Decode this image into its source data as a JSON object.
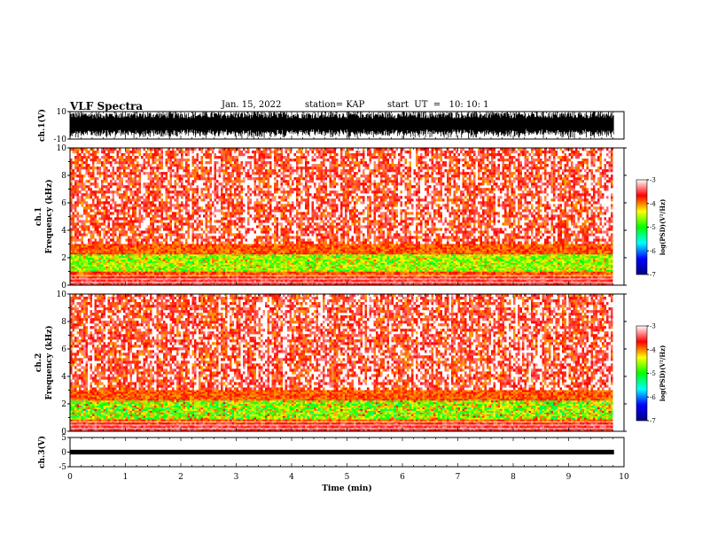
{
  "header": {
    "title": "VLF Spectra",
    "date": "Jan. 15, 2022",
    "station": "station= KAP",
    "start": "start  UT  =   10: 10: 1"
  },
  "chart_data": [
    {
      "type": "line",
      "name": "ch1-waveform",
      "ylabel": "ch.1(V)",
      "ylim": [
        -10,
        10
      ],
      "yticks": [
        "10",
        "-10"
      ],
      "xlim": [
        0,
        10
      ]
    },
    {
      "type": "heatmap",
      "name": "ch1-spectrogram",
      "ylabel": "ch.1\nFrequency (kHz)",
      "ylim": [
        0,
        10
      ],
      "yticks": [
        "0",
        "2",
        "4",
        "6",
        "8",
        "10"
      ],
      "xlim": [
        0,
        10
      ],
      "data_end_min": 9.82,
      "strong_band_khz": [
        1.0,
        3.0
      ],
      "colorbar": {
        "label": "log(PSD)(V²/Hz)",
        "range": [
          -7,
          -3
        ],
        "ticks": [
          "-3",
          "-4",
          "-5",
          "-6",
          "-7"
        ]
      }
    },
    {
      "type": "heatmap",
      "name": "ch2-spectrogram",
      "ylabel": "ch.2\nFrequency (kHz)",
      "ylim": [
        0,
        10
      ],
      "yticks": [
        "0",
        "2",
        "4",
        "6",
        "8",
        "10"
      ],
      "xlim": [
        0,
        10
      ],
      "data_end_min": 9.82,
      "strong_band_khz": [
        0.8,
        3.2
      ],
      "colorbar": {
        "label": "log(PSD)(V²/Hz)",
        "range": [
          -7,
          -3
        ],
        "ticks": [
          "-3",
          "-4",
          "-5",
          "-6",
          "-7"
        ]
      }
    },
    {
      "type": "line",
      "name": "ch3-waveform",
      "ylabel": "ch.3(V)",
      "ylim": [
        -5,
        5
      ],
      "yticks": [
        "5",
        "0",
        "-5"
      ],
      "xlim": [
        0,
        10
      ]
    }
  ],
  "xaxis": {
    "label": "Time (min)",
    "ticks": [
      "0",
      "1",
      "2",
      "3",
      "4",
      "5",
      "6",
      "7",
      "8",
      "9",
      "10"
    ]
  },
  "colors": {
    "colormap": [
      "#000080",
      "#0000ff",
      "#00ffff",
      "#00ff00",
      "#ffff00",
      "#ff0000",
      "#ffffff"
    ]
  }
}
